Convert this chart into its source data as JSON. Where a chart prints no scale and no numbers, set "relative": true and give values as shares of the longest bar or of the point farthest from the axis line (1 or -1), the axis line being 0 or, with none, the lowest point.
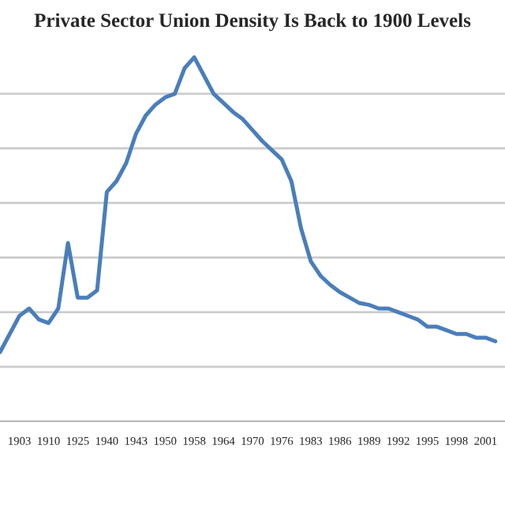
{
  "chart_data": {
    "type": "line",
    "title": "Private Sector Union Density Is Back to 1900 Levels",
    "categories": [
      null,
      null,
      "1903",
      null,
      null,
      "1910",
      null,
      null,
      "1925",
      null,
      null,
      "1940",
      null,
      null,
      "1943",
      null,
      null,
      "1950",
      null,
      null,
      "1958",
      null,
      null,
      "1964",
      null,
      null,
      "1970",
      null,
      null,
      "1976",
      null,
      null,
      "1983",
      null,
      null,
      "1986",
      null,
      null,
      "1989",
      null,
      null,
      "1992",
      null,
      null,
      "1995",
      null,
      null,
      "1998",
      null,
      null,
      "2001",
      null
    ],
    "relative": true,
    "grid": "y",
    "legend": false,
    "tick_labels": "x",
    "marker": "none",
    "line_style": "solid",
    "series": [
      {
        "color": "#4a7ebb",
        "values": [
          0.19,
          0.24,
          0.29,
          0.31,
          0.28,
          0.27,
          0.31,
          0.49,
          0.34,
          0.34,
          0.36,
          0.63,
          0.66,
          0.71,
          0.79,
          0.84,
          0.87,
          0.89,
          0.9,
          0.97,
          1.0,
          0.95,
          0.9,
          0.875,
          0.85,
          0.83,
          0.8,
          0.77,
          0.745,
          0.72,
          0.66,
          0.53,
          0.44,
          0.4,
          0.375,
          0.355,
          0.34,
          0.325,
          0.32,
          0.31,
          0.31,
          0.3,
          0.29,
          0.28,
          0.26,
          0.26,
          0.25,
          0.24,
          0.24,
          0.23,
          0.23,
          0.22
        ]
      }
    ]
  }
}
